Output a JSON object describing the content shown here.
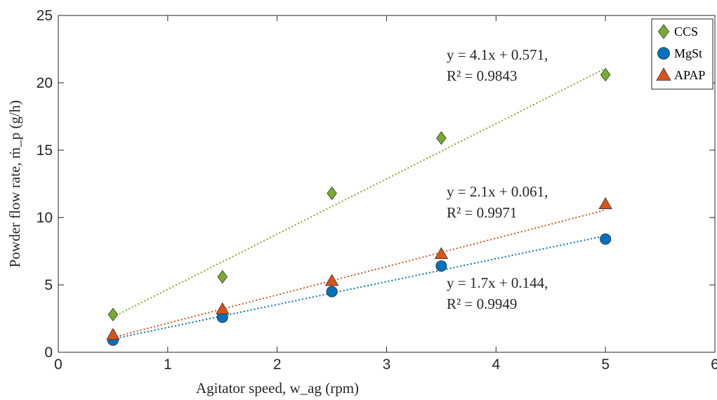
{
  "chart_data": {
    "type": "scatter",
    "x_label": "Agitator speed, w_ag (rpm)",
    "y_label": "Powder flow rate, ṁ_p (g/h)",
    "x": [
      0.5,
      1.5,
      2.5,
      3.5,
      5
    ],
    "series": [
      {
        "name": "CCS",
        "color": "#77ac30",
        "marker": "diamond",
        "values": [
          2.8,
          5.6,
          11.8,
          15.9,
          20.6
        ],
        "fit": {
          "slope": 4.1,
          "intercept": 0.571,
          "label": [
            "y = 4.1x + 0.571,",
            "R² = 0.9843"
          ]
        }
      },
      {
        "name": "MgSt",
        "color": "#0072bd",
        "marker": "circle",
        "values": [
          0.9,
          2.6,
          4.5,
          6.4,
          8.4
        ],
        "fit": {
          "slope": 1.7,
          "intercept": 0.144,
          "label": [
            "y = 1.7x + 0.144,",
            "R² = 0.9949"
          ]
        }
      },
      {
        "name": "APAP",
        "color": "#d95319",
        "marker": "triangle",
        "values": [
          1.3,
          3.2,
          5.3,
          7.3,
          11.0
        ],
        "fit": {
          "slope": 2.1,
          "intercept": 0.061,
          "label": [
            "y = 2.1x + 0.061,",
            "R² = 0.9971"
          ]
        }
      }
    ],
    "xlim": [
      0,
      6
    ],
    "xticks": [
      0,
      1,
      2,
      3,
      4,
      5,
      6
    ],
    "ylim": [
      0,
      25
    ],
    "yticks": [
      0,
      5,
      10,
      15,
      20,
      25
    ],
    "legend": "upper right"
  }
}
